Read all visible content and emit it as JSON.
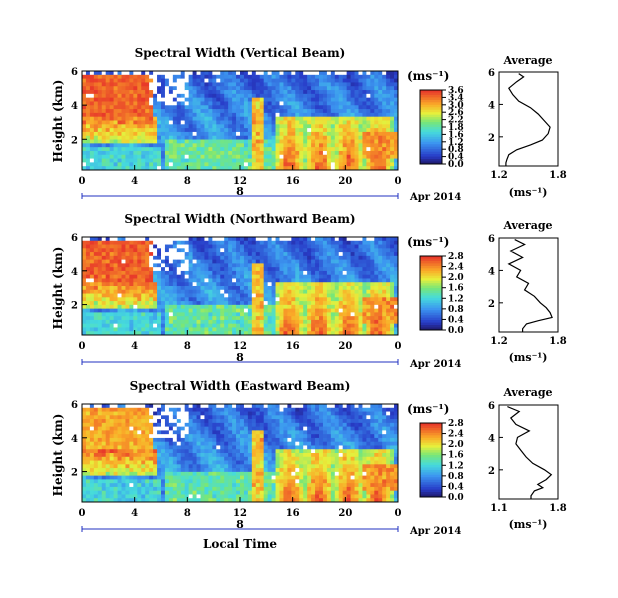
{
  "figure": {
    "xlabel": "Local Time",
    "date_label": "Apr 2014",
    "day_label": "8"
  },
  "colors": {
    "high": "#e83a2a",
    "mid": "#3bd0c8",
    "low": "#2233aa",
    "axis": "#000000",
    "timeline": "#2030c0"
  },
  "chart_data": [
    {
      "type": "heatmap",
      "title": "Spectral Width (Vertical Beam)",
      "ylabel": "Height (km)",
      "x_ticks": [
        "0",
        "4",
        "8",
        "12",
        "16",
        "20",
        "0"
      ],
      "y_ticks": [
        "6",
        "4",
        "2"
      ],
      "ylim": [
        0.2,
        6
      ],
      "colorbar": {
        "unit": "(ms⁻¹)",
        "ticks": [
          "3.6",
          "3.4",
          "3.0",
          "2.6",
          "2.2",
          "1.8",
          "1.6",
          "1.2",
          "0.8",
          "0.4",
          "0.0"
        ]
      },
      "profile": {
        "title": "Average",
        "xlabel": "(ms⁻¹)",
        "x_ticks": [
          "1.2",
          "1.8"
        ],
        "y_ticks": [
          "6",
          "4",
          "2"
        ],
        "x": [
          1.4,
          1.45,
          1.38,
          1.3,
          1.34,
          1.4,
          1.52,
          1.6,
          1.66,
          1.72,
          1.7,
          1.64,
          1.52,
          1.38,
          1.3,
          1.28,
          1.27,
          1.27
        ],
        "y": [
          5.9,
          5.7,
          5.4,
          5.0,
          4.6,
          4.2,
          3.8,
          3.4,
          3.0,
          2.6,
          2.2,
          1.8,
          1.5,
          1.2,
          0.9,
          0.6,
          0.4,
          0.2
        ]
      }
    },
    {
      "type": "heatmap",
      "title": "Spectral Width (Northward Beam)",
      "ylabel": "Height (km)",
      "x_ticks": [
        "0",
        "4",
        "8",
        "12",
        "16",
        "20",
        "0"
      ],
      "y_ticks": [
        "6",
        "4",
        "2"
      ],
      "ylim": [
        0.2,
        6
      ],
      "colorbar": {
        "unit": "(ms⁻¹)",
        "ticks": [
          "2.8",
          "2.4",
          "2.0",
          "1.6",
          "1.2",
          "0.8",
          "0.4",
          "0.0"
        ]
      },
      "profile": {
        "title": "Average",
        "xlabel": "(ms⁻¹)",
        "x_ticks": [
          "1.2",
          "1.8"
        ],
        "y_ticks": [
          "6",
          "4",
          "2"
        ],
        "x": [
          1.36,
          1.46,
          1.32,
          1.44,
          1.3,
          1.42,
          1.38,
          1.5,
          1.46,
          1.56,
          1.62,
          1.68,
          1.72,
          1.74,
          1.6,
          1.48,
          1.44,
          1.44
        ],
        "y": [
          5.9,
          5.6,
          5.2,
          4.8,
          4.4,
          4.0,
          3.6,
          3.2,
          2.8,
          2.4,
          2.0,
          1.7,
          1.4,
          1.1,
          0.9,
          0.7,
          0.4,
          0.2
        ]
      }
    },
    {
      "type": "heatmap",
      "title": "Spectral Width (Eastward Beam)",
      "ylabel": "Height (km)",
      "x_ticks": [
        "0",
        "4",
        "8",
        "12",
        "16",
        "20",
        "0"
      ],
      "y_ticks": [
        "6",
        "4",
        "2"
      ],
      "ylim": [
        0.2,
        6
      ],
      "colorbar": {
        "unit": "(ms⁻¹)",
        "ticks": [
          "2.8",
          "2.4",
          "2.0",
          "1.6",
          "1.2",
          "0.8",
          "0.4",
          "0.0"
        ]
      },
      "profile": {
        "title": "Average",
        "xlabel": "(ms⁻¹)",
        "x_ticks": [
          "1.1",
          "1.8"
        ],
        "y_ticks": [
          "6",
          "4",
          "2"
        ],
        "x": [
          1.2,
          1.34,
          1.24,
          1.3,
          1.46,
          1.32,
          1.3,
          1.36,
          1.42,
          1.5,
          1.64,
          1.72,
          1.66,
          1.56,
          1.62,
          1.52,
          1.48,
          1.48
        ],
        "y": [
          5.9,
          5.6,
          5.2,
          4.8,
          4.4,
          4.0,
          3.6,
          3.2,
          2.8,
          2.4,
          2.0,
          1.7,
          1.4,
          1.1,
          0.9,
          0.7,
          0.4,
          0.2
        ]
      }
    }
  ]
}
